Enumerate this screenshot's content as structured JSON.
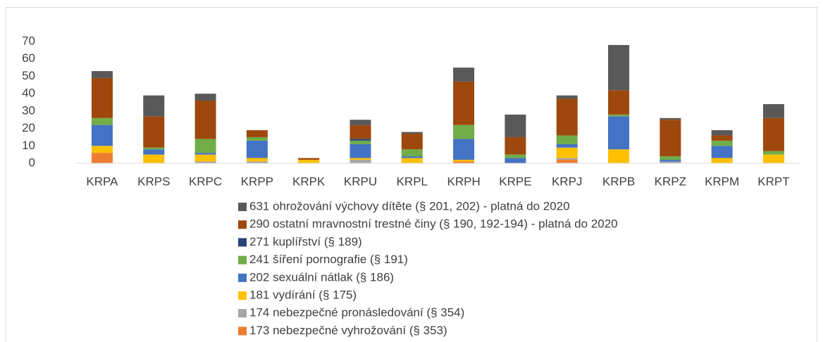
{
  "chart_data": {
    "type": "bar",
    "stacked": true,
    "categories": [
      "KRPA",
      "KRPS",
      "KRPC",
      "KRPP",
      "KRPK",
      "KRPU",
      "KRPL",
      "KRPH",
      "KRPE",
      "KRPJ",
      "KRPB",
      "KRPZ",
      "KRPM",
      "KRPT"
    ],
    "series": [
      {
        "name": "173 nebezpečné vyhrožování (§ 353)",
        "color": "#ed7d31",
        "values": [
          6,
          0,
          0,
          0,
          0,
          0,
          0,
          1,
          0,
          2,
          0,
          0,
          0,
          0
        ]
      },
      {
        "name": "174 nebezpečné pronásledování (§ 354)",
        "color": "#a5a5a5",
        "values": [
          0,
          0,
          1,
          1,
          0,
          2,
          0,
          0,
          0,
          1,
          0,
          1,
          0,
          0
        ]
      },
      {
        "name": "181 vydírání (§ 175)",
        "color": "#ffc000",
        "values": [
          4,
          5,
          4,
          2,
          2,
          1,
          3,
          1,
          0,
          6,
          8,
          0,
          3,
          5
        ]
      },
      {
        "name": "202 sexuální nátlak (§ 186)",
        "color": "#4472c4",
        "values": [
          12,
          3,
          1,
          10,
          0,
          8,
          1,
          12,
          3,
          2,
          19,
          1,
          7,
          0
        ]
      },
      {
        "name": "241 šíření pornografie (§ 191)",
        "color": "#70ad47",
        "values": [
          4,
          1,
          8,
          2,
          0,
          2,
          4,
          8,
          2,
          5,
          1,
          2,
          3,
          2
        ]
      },
      {
        "name": "271 kuplířství (§ 189)",
        "color": "#264478",
        "values": [
          0,
          0,
          0,
          0,
          0,
          1,
          0,
          0,
          0,
          0,
          0,
          0,
          0,
          0
        ]
      },
      {
        "name": "290 ostatní mravnostní trestné činy (§ 190, 192-194) - platná do 2020",
        "color": "#9e480e",
        "values": [
          23,
          18,
          22,
          4,
          1,
          8,
          9,
          25,
          10,
          21,
          14,
          21,
          3,
          19
        ]
      },
      {
        "name": "631 ohrožování výchovy dítěte (§ 201, 202) - platná do 2020",
        "color": "#595959",
        "values": [
          4,
          12,
          4,
          0,
          0,
          3,
          1,
          8,
          13,
          2,
          26,
          1,
          3,
          8
        ]
      }
    ],
    "ylim": [
      0,
      70
    ],
    "yticks": [
      0,
      10,
      20,
      30,
      40,
      50,
      60,
      70
    ],
    "grid": false,
    "legend": "bottom"
  }
}
